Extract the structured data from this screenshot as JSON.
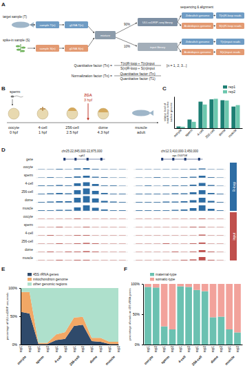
{
  "panels": [
    "A",
    "B",
    "C",
    "D",
    "E",
    "F"
  ],
  "diagram_a": {
    "target": "target sample (T)",
    "spike_in": "spike-in sample (S)",
    "sample_t": "sample T(n)",
    "gdna_t": "gDNA T(n)",
    "sample_s": "sample S(n)",
    "gdna_s": "gDNA S(n)",
    "mixture": "mixture",
    "split_ip": "90%",
    "split_input": "10%",
    "ip_library": "ULI-ssDRIP-seq library",
    "input_library": "input library",
    "seq": "sequencing & alignment",
    "genomes": [
      "Zebrafish genome",
      "Arabidopsis genome",
      "Zebrafish genome",
      "Arabidopsis genome"
    ],
    "reads": [
      "T(n)R-loop reads",
      "S(n)R-loop reads",
      "T(n)input reads",
      "S(n)input reads"
    ],
    "formula1": {
      "lhs": "Quantitative factor (Tn) =",
      "num": "T(n)R-loop ÷ T(n)input",
      "den": "S(n)R-loop ÷ S(n)input"
    },
    "n_note": "[n = 1, 2, 3...]",
    "formula2": {
      "lhs": "Normalization factor (Tn) =",
      "num": "Quantitative factor (Tn)",
      "den": "Quantitative factor (T1)"
    }
  },
  "diagram_b": {
    "sperm": "sperm",
    "stages": [
      {
        "label": "oocyte",
        "time": "0 hpf"
      },
      {
        "label": "4-cell",
        "time": "1 hpf"
      },
      {
        "label": "256-cell",
        "time": "2.5 hpf"
      },
      {
        "label": "dome",
        "time": "4.3 hpf"
      },
      {
        "label": "muscle",
        "time": "adult"
      }
    ],
    "zga": "ZGA",
    "zga_time": "3 hpf"
  },
  "browser_d": {
    "gene_row": "gene",
    "track_ylim": [
      0,
      1
    ],
    "loci": [
      {
        "region": "chr25:22,845,000-22,875,000",
        "gene": "sgk1"
      },
      {
        "region": "chr12:3,410,000-3,450,000",
        "gene": "zgc:153704"
      }
    ],
    "groups": [
      {
        "name": "R-loop",
        "color": "#2e6da4",
        "tracks": [
          {
            "sample": "oocyte",
            "values": [
              [
                0.05,
                0.05,
                0.1,
                0.05,
                0.15,
                0.2,
                0.1,
                0.05,
                0.05,
                0.05
              ],
              [
                0.05,
                0.05,
                0.05,
                0.05,
                0.05,
                0.05,
                0.1,
                0.15,
                0.05,
                0.05
              ]
            ]
          },
          {
            "sample": "sperm",
            "values": [
              [
                0.05,
                0.1,
                0.05,
                0.1,
                0.2,
                0.3,
                0.15,
                0.1,
                0.05,
                0.05
              ],
              [
                0.05,
                0.05,
                0.1,
                0.05,
                0.05,
                0.1,
                0.15,
                0.3,
                0.1,
                0.05
              ]
            ]
          },
          {
            "sample": "4-cell",
            "values": [
              [
                0.1,
                0.1,
                0.15,
                0.1,
                0.4,
                0.55,
                0.3,
                0.1,
                0.1,
                0.05
              ],
              [
                0.05,
                0.1,
                0.05,
                0.1,
                0.1,
                0.1,
                0.2,
                0.45,
                0.15,
                0.05
              ]
            ]
          },
          {
            "sample": "256-cell",
            "values": [
              [
                0.1,
                0.15,
                0.2,
                0.15,
                0.6,
                0.85,
                0.5,
                0.2,
                0.1,
                0.1
              ],
              [
                0.1,
                0.1,
                0.1,
                0.1,
                0.15,
                0.15,
                0.3,
                0.6,
                0.2,
                0.1
              ]
            ]
          },
          {
            "sample": "dome",
            "values": [
              [
                0.1,
                0.15,
                0.2,
                0.2,
                0.7,
                0.95,
                0.6,
                0.25,
                0.15,
                0.1
              ],
              [
                0.1,
                0.1,
                0.1,
                0.15,
                0.15,
                0.2,
                0.35,
                0.7,
                0.25,
                0.1
              ]
            ]
          },
          {
            "sample": "muscle",
            "values": [
              [
                0.1,
                0.1,
                0.15,
                0.15,
                0.5,
                0.8,
                0.45,
                0.2,
                0.1,
                0.1
              ],
              [
                0.1,
                0.1,
                0.1,
                0.1,
                0.15,
                0.2,
                0.4,
                0.8,
                0.3,
                0.1
              ]
            ]
          }
        ]
      },
      {
        "name": "input",
        "color": "#c0504d",
        "tracks": [
          {
            "sample": "oocyte",
            "values": [
              [
                0.05,
                0.05,
                0.05,
                0.05,
                0.1,
                0.05,
                0.05,
                0.05,
                0.05,
                0.05
              ],
              [
                0.05,
                0.05,
                0.05,
                0.05,
                0.05,
                0.05,
                0.05,
                0.1,
                0.05,
                0.05
              ]
            ]
          },
          {
            "sample": "sperm",
            "values": [
              [
                0.05,
                0.05,
                0.1,
                0.05,
                0.05,
                0.1,
                0.05,
                0.05,
                0.05,
                0.05
              ],
              [
                0.05,
                0.05,
                0.05,
                0.05,
                0.05,
                0.05,
                0.1,
                0.1,
                0.05,
                0.05
              ]
            ]
          },
          {
            "sample": "4-cell",
            "values": [
              [
                0.05,
                0.1,
                0.05,
                0.05,
                0.1,
                0.1,
                0.05,
                0.05,
                0.05,
                0.05
              ],
              [
                0.05,
                0.05,
                0.05,
                0.05,
                0.05,
                0.05,
                0.05,
                0.15,
                0.05,
                0.05
              ]
            ]
          },
          {
            "sample": "256-cell",
            "values": [
              [
                0.05,
                0.05,
                0.1,
                0.05,
                0.1,
                0.15,
                0.1,
                0.05,
                0.05,
                0.05
              ],
              [
                0.05,
                0.05,
                0.05,
                0.1,
                0.05,
                0.05,
                0.1,
                0.2,
                0.05,
                0.05
              ]
            ]
          },
          {
            "sample": "dome",
            "values": [
              [
                0.05,
                0.1,
                0.05,
                0.1,
                0.1,
                0.15,
                0.1,
                0.05,
                0.05,
                0.05
              ],
              [
                0.05,
                0.05,
                0.05,
                0.05,
                0.1,
                0.05,
                0.1,
                0.3,
                0.1,
                0.05
              ]
            ]
          },
          {
            "sample": "muscle",
            "values": [
              [
                0.05,
                0.05,
                0.1,
                0.05,
                0.1,
                0.1,
                0.05,
                0.05,
                0.05,
                0.05
              ],
              [
                0.05,
                0.05,
                0.05,
                0.05,
                0.05,
                0.1,
                0.15,
                0.5,
                0.1,
                0.05
              ]
            ]
          }
        ]
      }
    ]
  },
  "chart_data": [
    {
      "type": "bar",
      "categories": [
        "oocyte",
        "sperm",
        "4-cell",
        "256-cell",
        "dome",
        "muscle"
      ],
      "series": [
        {
          "name": "rep1",
          "color": "#1d7f74",
          "values": [
            0.06,
            0.3,
            0.92,
            1.0,
            0.97,
            0.75
          ]
        },
        {
          "name": "rep2",
          "color": "#6cc7ae",
          "values": [
            0.05,
            0.22,
            0.82,
            1.02,
            0.96,
            0.8
          ]
        }
      ],
      "y_label": "relative level of total R-loop in the nuclear genome",
      "ylim": [
        0,
        1.1
      ],
      "tick_labels": "x",
      "legend": "top-right"
    },
    {
      "type": "area",
      "stacked": true,
      "categories": [
        "rep1",
        "rep2",
        "rep1",
        "rep2",
        "rep1",
        "rep2",
        "rep1",
        "rep2",
        "rep1",
        "rep2",
        "rep1",
        "rep2"
      ],
      "category_groups": [
        "oocyte",
        "sperm",
        "4-cell",
        "256-cell",
        "dome",
        "muscle"
      ],
      "series": [
        {
          "name": "45S rRNA genes",
          "color": "#2f4a6b",
          "values": [
            58,
            55,
            1,
            1,
            8,
            10,
            33,
            35,
            6,
            5,
            1,
            1
          ]
        },
        {
          "name": "mitochondrion genome",
          "color": "#f2a765",
          "values": [
            35,
            38,
            2,
            2,
            10,
            12,
            15,
            14,
            6,
            7,
            4,
            4
          ]
        },
        {
          "name": "other genomic regions",
          "color": "#aee0cc",
          "values": [
            7,
            7,
            97,
            97,
            82,
            78,
            52,
            51,
            88,
            88,
            95,
            95
          ]
        }
      ],
      "y_label": "percentage of ULI-ssDRIP-seq reads",
      "ylim": [
        0,
        100
      ],
      "yticks": [
        {
          "value": 0,
          "label": "0%"
        },
        {
          "value": 50,
          "label": "50%"
        },
        {
          "value": 100,
          "label": "100%"
        }
      ],
      "legend": "top"
    },
    {
      "type": "bar",
      "stacked": true,
      "categories": [
        "rep1",
        "rep2",
        "rep1",
        "rep2",
        "rep1",
        "rep2",
        "rep1",
        "rep2",
        "rep1",
        "rep2",
        "rep1",
        "rep2"
      ],
      "category_groups": [
        "oocyte",
        "sperm",
        "4-cell",
        "256-cell",
        "dome",
        "muscle"
      ],
      "series": [
        {
          "name": "maternal-type",
          "color": "#6bc1b1",
          "values": [
            95,
            94,
            30,
            25,
            96,
            95,
            90,
            88,
            45,
            46,
            25,
            20
          ]
        },
        {
          "name": "somatic-type",
          "color": "#f2a29b",
          "values": [
            5,
            6,
            70,
            75,
            4,
            5,
            10,
            12,
            55,
            54,
            75,
            80
          ]
        }
      ],
      "y_label": "percentage of reads on 45S rRNA genes",
      "ylim": [
        0,
        100
      ],
      "yticks": [
        {
          "value": 0,
          "label": "0%"
        },
        {
          "value": 50,
          "label": "50%"
        },
        {
          "value": 100,
          "label": "100%"
        }
      ],
      "legend": "top"
    }
  ]
}
